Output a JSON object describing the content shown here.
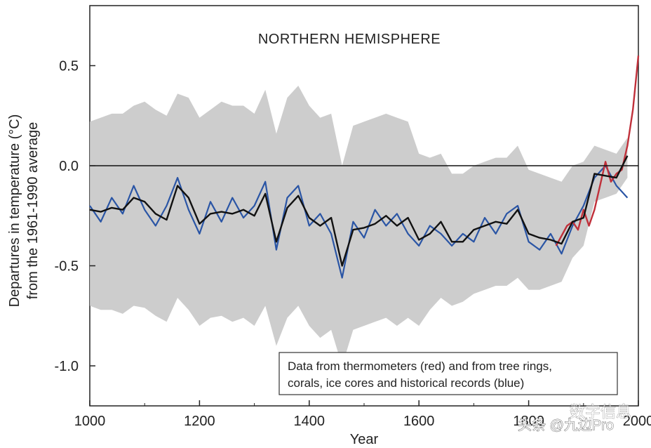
{
  "chart_data": {
    "type": "line",
    "title": "NORTHERN HEMISPHERE",
    "xlabel": "Year",
    "ylabel": [
      "Departures in temperature (°C)",
      "from the 1961-1990 average"
    ],
    "xlim": [
      1000,
      2000
    ],
    "ylim": [
      -1.2,
      0.8
    ],
    "x_ticks": [
      {
        "value": 1000,
        "label": "1000"
      },
      {
        "value": 1200,
        "label": "1200"
      },
      {
        "value": 1400,
        "label": "1400"
      },
      {
        "value": 1600,
        "label": "1600"
      },
      {
        "value": 1800,
        "label": "1800"
      },
      {
        "value": 2000,
        "label": "2000"
      }
    ],
    "y_ticks": [
      {
        "value": 0.5,
        "label": "0.5"
      },
      {
        "value": 0.0,
        "label": "0.0"
      },
      {
        "value": -0.5,
        "label": "-0.5"
      },
      {
        "value": -1.0,
        "label": "-1.0"
      }
    ],
    "reference_line": 0.0,
    "legend_text": [
      "Data from thermometers (red) and from tree rings,",
      "corals, ice cores and historical records (blue)"
    ],
    "legend_position": "bottom-right",
    "colors": {
      "uncertainty": "#c8c8c8",
      "proxy": "#2a55a5",
      "instrumental": "#c0303a",
      "smoothed": "#111111",
      "axes": "#222222"
    },
    "series": [
      {
        "years": [
          1000,
          1020,
          1040,
          1060,
          1080,
          1100,
          1120,
          1140,
          1160,
          1180,
          1200,
          1220,
          1240,
          1260,
          1280,
          1300,
          1320,
          1340,
          1360,
          1380,
          1400,
          1420,
          1440,
          1460,
          1480,
          1500,
          1520,
          1540,
          1560,
          1580,
          1600,
          1620,
          1640,
          1660,
          1680,
          1700,
          1720,
          1740,
          1760,
          1780,
          1800,
          1820,
          1840,
          1860,
          1880,
          1900,
          1920,
          1940,
          1960,
          1980,
          2000
        ],
        "smoothed": [
          -0.22,
          -0.23,
          -0.21,
          -0.22,
          -0.16,
          -0.18,
          -0.24,
          -0.27,
          -0.1,
          -0.16,
          -0.29,
          -0.24,
          -0.23,
          -0.24,
          -0.22,
          -0.25,
          -0.14,
          -0.38,
          -0.21,
          -0.15,
          -0.26,
          -0.3,
          -0.26,
          -0.5,
          -0.32,
          -0.31,
          -0.29,
          -0.25,
          -0.3,
          -0.26,
          -0.37,
          -0.34,
          -0.28,
          -0.38,
          -0.38,
          -0.32,
          -0.3,
          -0.28,
          -0.29,
          -0.22,
          -0.34,
          -0.36,
          -0.37,
          -0.39,
          -0.28,
          -0.26,
          -0.04,
          -0.05,
          -0.06,
          0.05,
          null
        ],
        "uncertainty_lower": [
          -0.7,
          -0.72,
          -0.72,
          -0.74,
          -0.7,
          -0.71,
          -0.75,
          -0.78,
          -0.66,
          -0.72,
          -0.8,
          -0.76,
          -0.75,
          -0.78,
          -0.76,
          -0.8,
          -0.7,
          -0.9,
          -0.76,
          -0.7,
          -0.8,
          -0.86,
          -0.82,
          -1.0,
          -0.82,
          -0.8,
          -0.78,
          -0.76,
          -0.8,
          -0.76,
          -0.8,
          -0.72,
          -0.66,
          -0.7,
          -0.68,
          -0.64,
          -0.62,
          -0.6,
          -0.6,
          -0.56,
          -0.62,
          -0.62,
          -0.6,
          -0.58,
          -0.46,
          -0.4,
          -0.18,
          -0.16,
          -0.14,
          -0.06,
          null
        ],
        "uncertainty_upper": [
          0.22,
          0.24,
          0.26,
          0.26,
          0.3,
          0.32,
          0.28,
          0.25,
          0.36,
          0.34,
          0.24,
          0.28,
          0.32,
          0.3,
          0.3,
          0.26,
          0.38,
          0.16,
          0.34,
          0.4,
          0.3,
          0.24,
          0.26,
          0.0,
          0.2,
          0.22,
          0.24,
          0.26,
          0.24,
          0.22,
          0.06,
          0.04,
          0.06,
          -0.04,
          -0.04,
          0.0,
          0.02,
          0.04,
          0.04,
          0.1,
          -0.02,
          -0.04,
          -0.06,
          -0.08,
          0.0,
          0.02,
          0.1,
          0.08,
          0.06,
          0.14,
          null
        ]
      },
      {
        "name": "thermometers (red)",
        "years": [
          1850,
          1860,
          1870,
          1880,
          1890,
          1900,
          1910,
          1920,
          1930,
          1940,
          1950,
          1960,
          1970,
          1980,
          1990,
          2000
        ],
        "values": [
          -0.4,
          -0.35,
          -0.3,
          -0.28,
          -0.32,
          -0.22,
          -0.3,
          -0.22,
          -0.1,
          0.02,
          -0.08,
          -0.04,
          -0.02,
          0.1,
          0.28,
          0.55
        ]
      },
      {
        "name": "tree rings, corals, ice cores and historical records (blue)",
        "years": [
          1000,
          1020,
          1040,
          1060,
          1080,
          1100,
          1120,
          1140,
          1160,
          1180,
          1200,
          1220,
          1240,
          1260,
          1280,
          1300,
          1320,
          1340,
          1360,
          1380,
          1400,
          1420,
          1440,
          1460,
          1480,
          1500,
          1520,
          1540,
          1560,
          1580,
          1600,
          1620,
          1640,
          1660,
          1680,
          1700,
          1720,
          1740,
          1760,
          1780,
          1800,
          1820,
          1840,
          1860,
          1880,
          1900,
          1920,
          1940,
          1960,
          1980
        ],
        "values": [
          -0.2,
          -0.28,
          -0.16,
          -0.24,
          -0.1,
          -0.22,
          -0.3,
          -0.2,
          -0.06,
          -0.22,
          -0.34,
          -0.18,
          -0.28,
          -0.16,
          -0.26,
          -0.2,
          -0.08,
          -0.42,
          -0.16,
          -0.1,
          -0.3,
          -0.24,
          -0.34,
          -0.56,
          -0.28,
          -0.36,
          -0.22,
          -0.3,
          -0.24,
          -0.34,
          -0.4,
          -0.3,
          -0.34,
          -0.4,
          -0.34,
          -0.38,
          -0.26,
          -0.34,
          -0.24,
          -0.2,
          -0.38,
          -0.42,
          -0.34,
          -0.44,
          -0.3,
          -0.2,
          -0.06,
          0.0,
          -0.1,
          -0.16
        ]
      }
    ]
  },
  "watermark": {
    "text": "头条 @九边Pro",
    "logo_text": "数字信息"
  }
}
